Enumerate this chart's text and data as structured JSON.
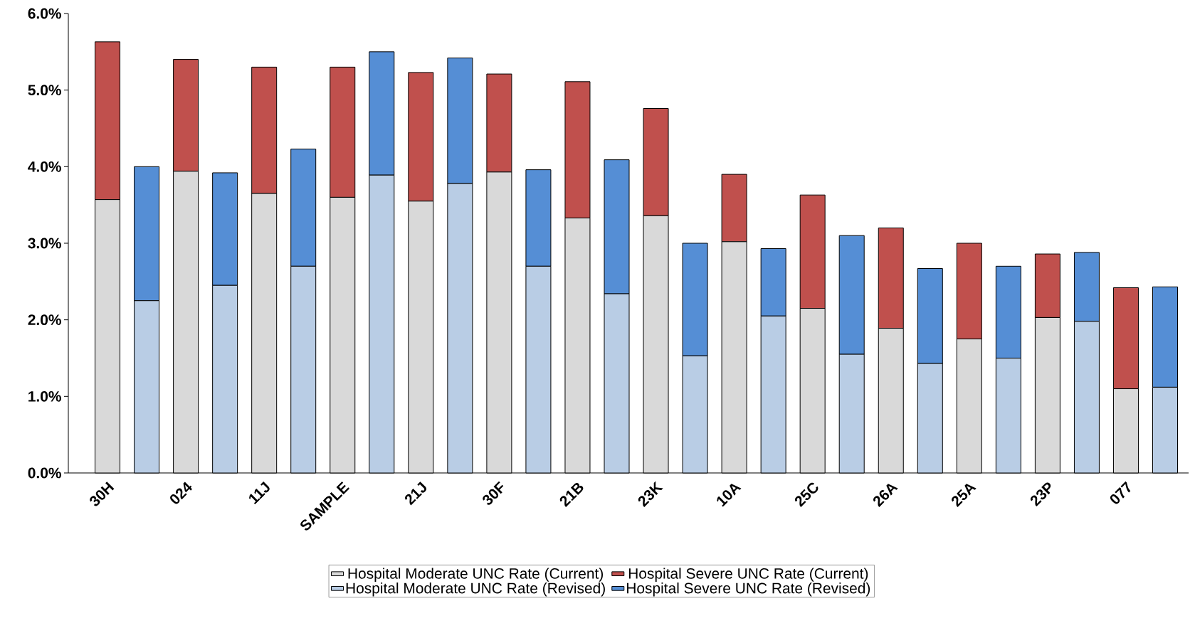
{
  "chart_data": {
    "type": "bar",
    "stacked": true,
    "legend": "bottom",
    "categories": [
      "30H",
      null,
      "024",
      null,
      "11J",
      null,
      "SAMPLE",
      null,
      "21J",
      null,
      "30F",
      null,
      "21B",
      null,
      "23K",
      null,
      "10A",
      null,
      "25C",
      null,
      "26A",
      null,
      "25A",
      null,
      "23P",
      null,
      "077",
      null
    ],
    "series": [
      {
        "name": "Hospital Moderate UNC Rate (Current)",
        "color": "#d9d9d9",
        "values": [
          3.57,
          null,
          3.94,
          null,
          3.65,
          null,
          3.6,
          null,
          3.55,
          null,
          3.93,
          null,
          3.33,
          null,
          3.36,
          null,
          3.02,
          null,
          2.15,
          null,
          1.89,
          null,
          1.75,
          null,
          2.03,
          null,
          1.1,
          null
        ]
      },
      {
        "name": "Hospital Severe UNC Rate (Current)",
        "color": "#c0504d",
        "values": [
          2.06,
          null,
          1.46,
          null,
          1.65,
          null,
          1.7,
          null,
          1.68,
          null,
          1.28,
          null,
          1.78,
          null,
          1.4,
          null,
          0.88,
          null,
          1.48,
          null,
          1.31,
          null,
          1.25,
          null,
          0.83,
          null,
          1.32,
          null
        ]
      },
      {
        "name": "Hospital Moderate UNC Rate (Revised)",
        "color": "#b9cde5",
        "values": [
          null,
          2.25,
          null,
          2.45,
          null,
          2.7,
          null,
          3.89,
          null,
          3.78,
          null,
          2.7,
          null,
          2.34,
          null,
          1.53,
          null,
          2.05,
          null,
          1.55,
          null,
          1.43,
          null,
          1.5,
          null,
          1.98,
          null,
          1.12
        ]
      },
      {
        "name": "Hospital Severe UNC Rate (Revised)",
        "color": "#558ed5",
        "values": [
          null,
          1.75,
          null,
          1.47,
          null,
          1.53,
          null,
          1.61,
          null,
          1.64,
          null,
          1.26,
          null,
          1.75,
          null,
          1.47,
          null,
          0.88,
          null,
          1.55,
          null,
          1.24,
          null,
          1.2,
          null,
          0.9,
          null,
          1.31
        ]
      }
    ],
    "ylim": [
      0,
      6
    ],
    "yticks": [
      {
        "value": 0,
        "label": "0.0%"
      },
      {
        "value": 1,
        "label": "1.0%"
      },
      {
        "value": 2,
        "label": "2.0%"
      },
      {
        "value": 3,
        "label": "3.0%"
      },
      {
        "value": 4,
        "label": "4.0%"
      },
      {
        "value": 5,
        "label": "5.0%"
      },
      {
        "value": 6,
        "label": "6.0%"
      }
    ]
  }
}
